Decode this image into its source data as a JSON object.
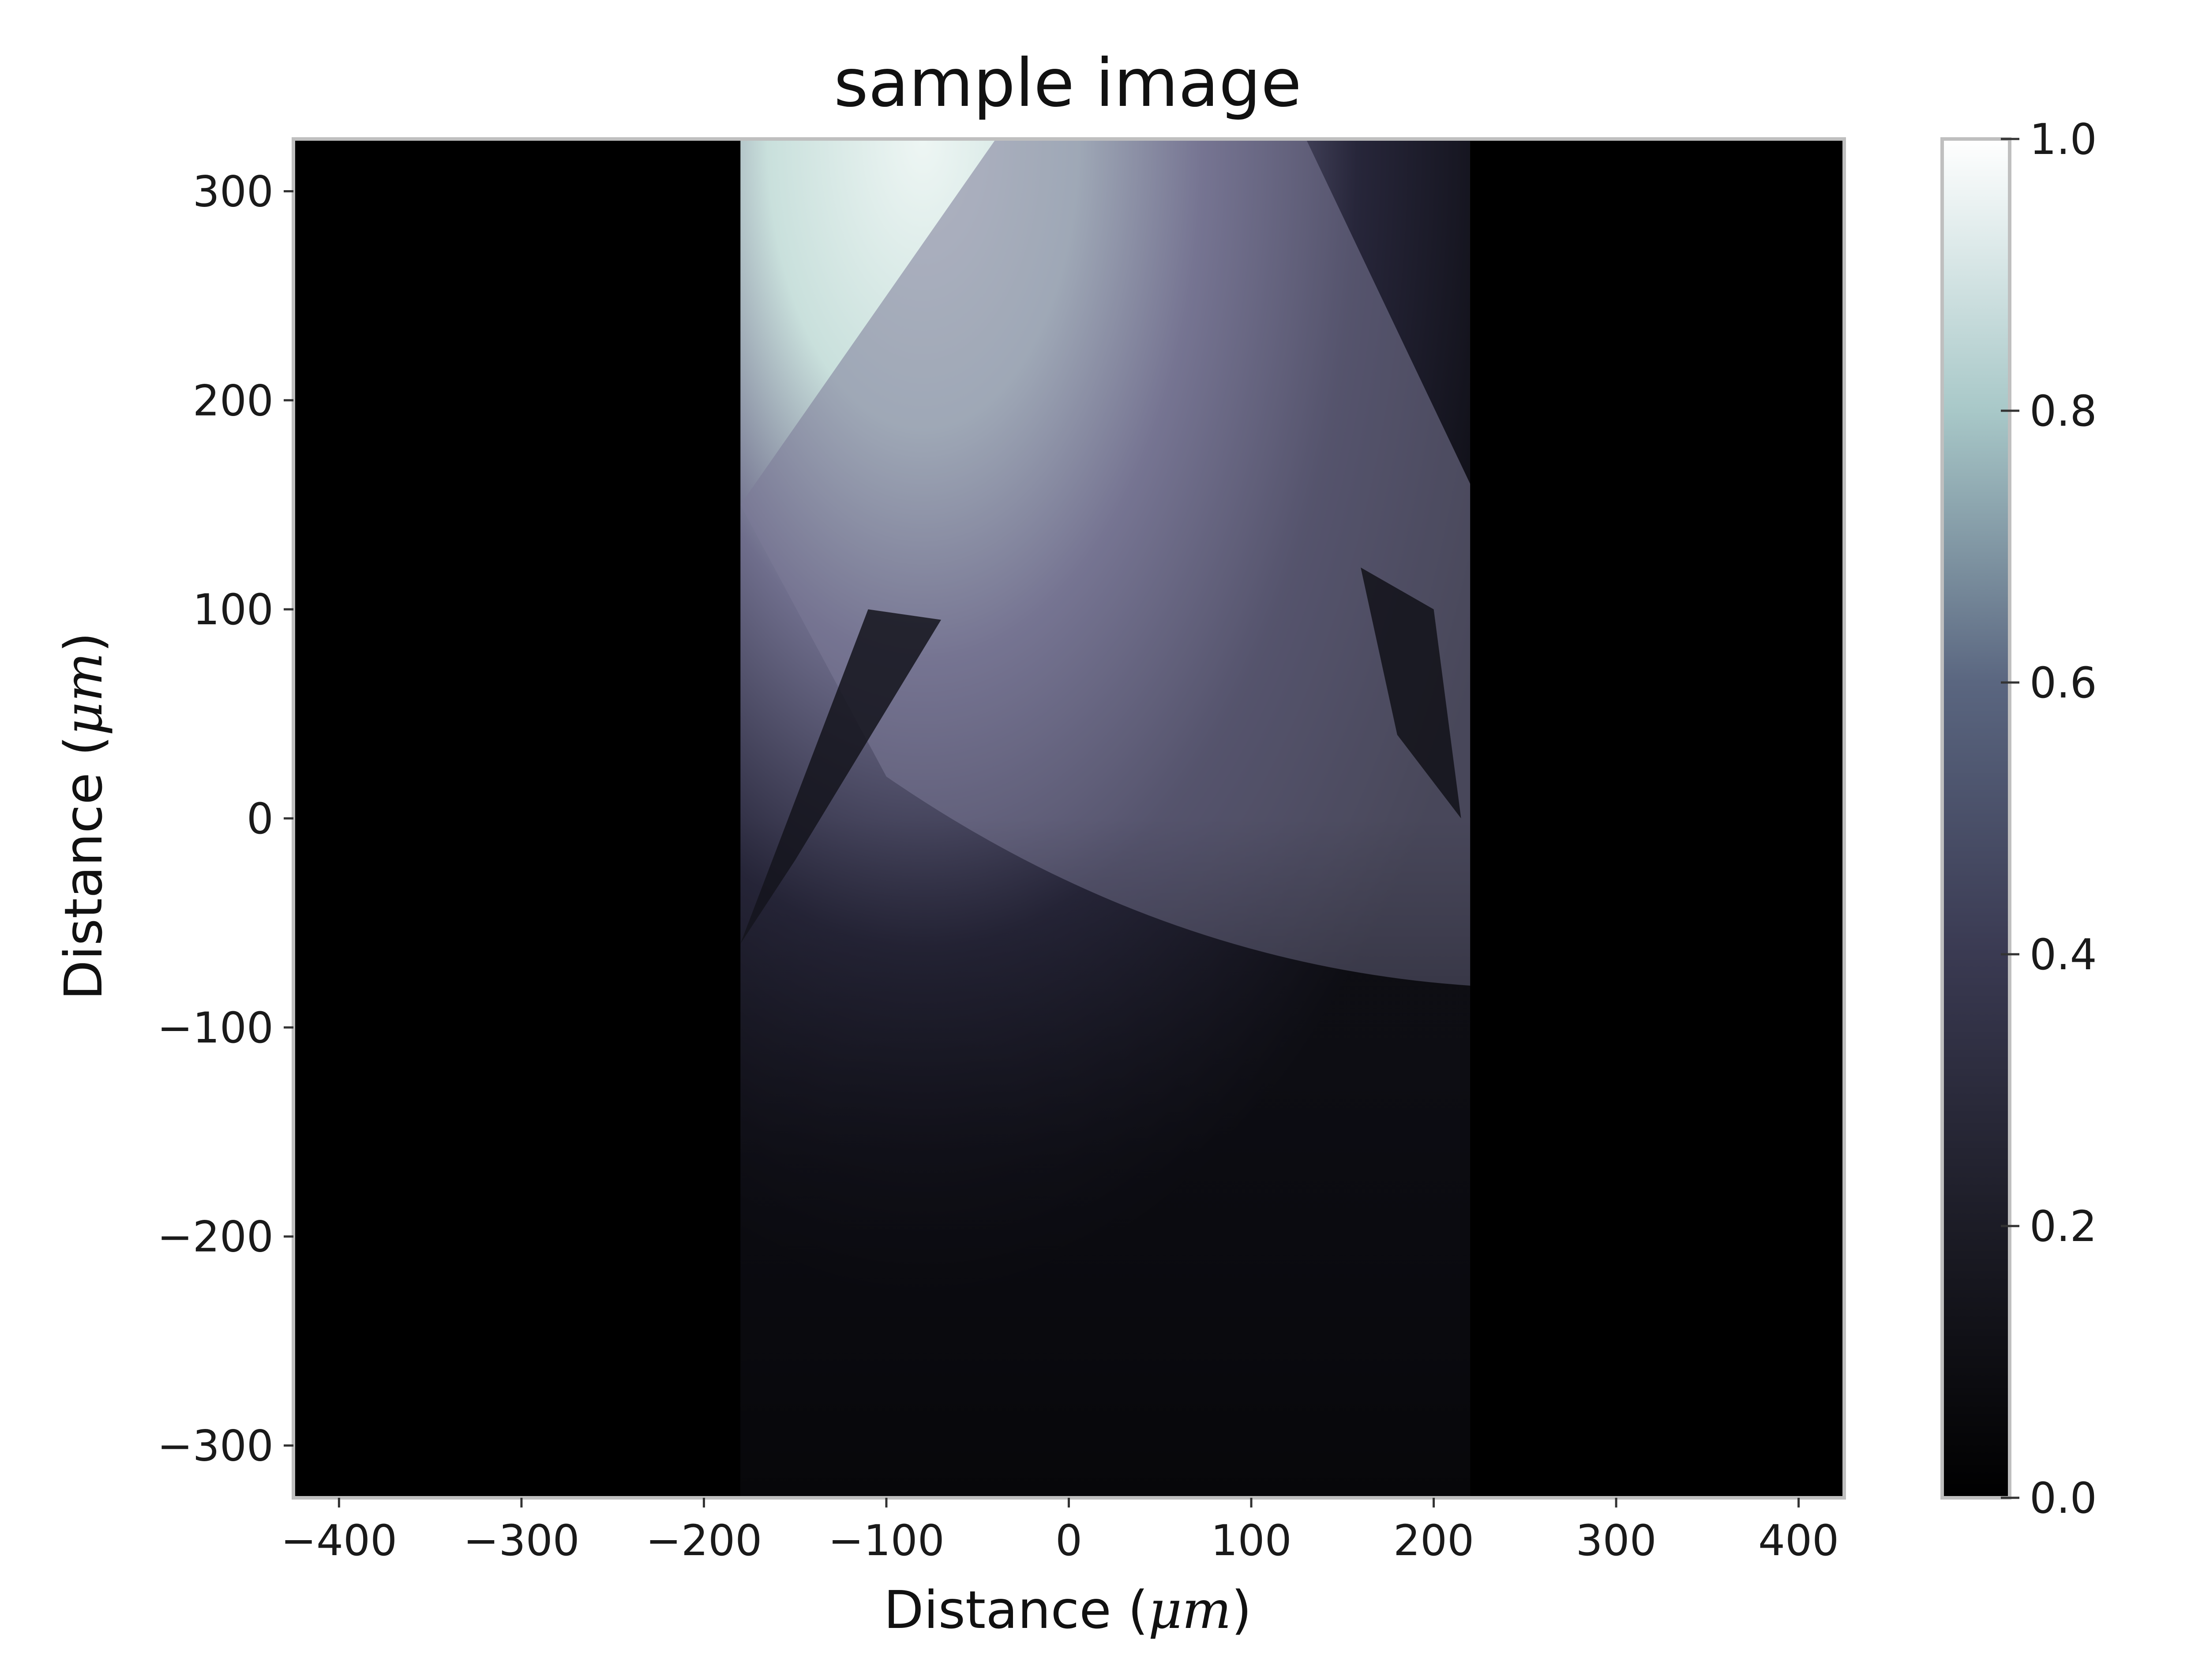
{
  "chart_data": {
    "type": "heatmap",
    "title": "sample image",
    "xlabel": {
      "prefix": "Distance (",
      "unit": "μm",
      "suffix": ")"
    },
    "ylabel": {
      "prefix": "Distance (",
      "unit": "μm",
      "suffix": ")"
    },
    "xlim": [
      -425,
      425
    ],
    "ylim": [
      -325,
      325
    ],
    "x_ticks": [
      -400,
      -300,
      -200,
      -100,
      0,
      100,
      200,
      300,
      400
    ],
    "x_tick_labels": [
      "−400",
      "−300",
      "−200",
      "−100",
      "0",
      "100",
      "200",
      "300",
      "400"
    ],
    "y_ticks": [
      300,
      200,
      100,
      0,
      -100,
      -200,
      -300
    ],
    "y_tick_labels": [
      "300",
      "200",
      "100",
      "0",
      "−100",
      "−200",
      "−300"
    ],
    "image_extent_x": [
      -180,
      220
    ],
    "colormap": "bone",
    "colorbar": {
      "range": [
        0.0,
        1.0
      ],
      "ticks": [
        0.0,
        0.2,
        0.4,
        0.6,
        0.8,
        1.0
      ],
      "tick_labels": [
        "0.0",
        "0.2",
        "0.4",
        "0.6",
        "0.8",
        "1.0"
      ],
      "colors": [
        "#000000",
        "#1c1c26",
        "#3a3a52",
        "#5a6680",
        "#a8c8c8",
        "#ffffff"
      ]
    },
    "grid": false,
    "colors": {
      "background": "#000000",
      "frame": "#bfbfbf"
    }
  }
}
